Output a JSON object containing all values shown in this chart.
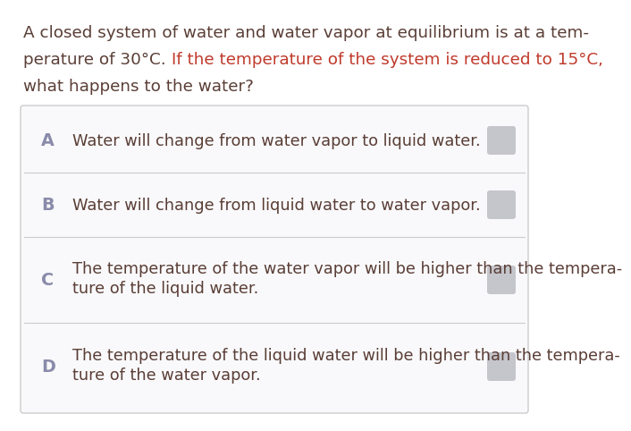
{
  "bg_color": "#ffffff",
  "question_line1": "A closed system of water and water vapor at equilibrium is at a tem-",
  "question_line2a": "perature of 30°C. ",
  "question_line2b": "If the temperature of the system is reduced to 15°C,",
  "question_line3": "what happens to the water?",
  "question_color_normal": "#5a3e36",
  "question_color_bold": "#c0392b",
  "choices": [
    {
      "letter": "A",
      "text": "Water will change from water vapor to liquid water.",
      "multiline": false
    },
    {
      "letter": "B",
      "text": "Water will change from liquid water to water vapor.",
      "multiline": false
    },
    {
      "letter": "C",
      "text_line1": "The temperature of the water vapor will be higher than the tempera-",
      "text_line2": "ture of the liquid water.",
      "multiline": true
    },
    {
      "letter": "D",
      "text_line1": "The temperature of the liquid water will be higher than the tempera-",
      "text_line2": "ture of the water vapor.",
      "multiline": true
    }
  ],
  "choice_text_color": "#5a3e36",
  "choice_letter_color": "#8a8aaa",
  "box_border_color": "#cccccc",
  "box_bg_color": "#f9f9fb",
  "radio_color": "#c5c5cc",
  "font_size_question": 13.2,
  "font_size_choice": 12.8
}
